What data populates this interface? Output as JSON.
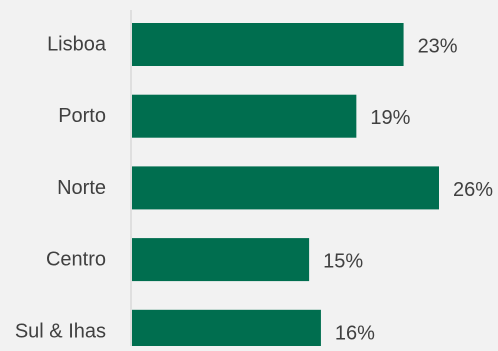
{
  "chart_data": {
    "type": "bar",
    "orientation": "horizontal",
    "categories": [
      "Lisboa",
      "Porto",
      "Norte",
      "Centro",
      "Sul & Ihas"
    ],
    "values": [
      23,
      19,
      26,
      15,
      16
    ],
    "value_labels": [
      "23%",
      "19%",
      "26%",
      "15%",
      "16%"
    ],
    "unit": "%",
    "title": "",
    "xlabel": "",
    "ylabel": "",
    "xlim": [
      0,
      26
    ],
    "grid": false,
    "legend": "none",
    "colors": {
      "bar": "#006e4f",
      "background": "#f2f2f2",
      "axis": "#cccccc",
      "category_text": "#404040",
      "value_text": "#404040"
    }
  }
}
